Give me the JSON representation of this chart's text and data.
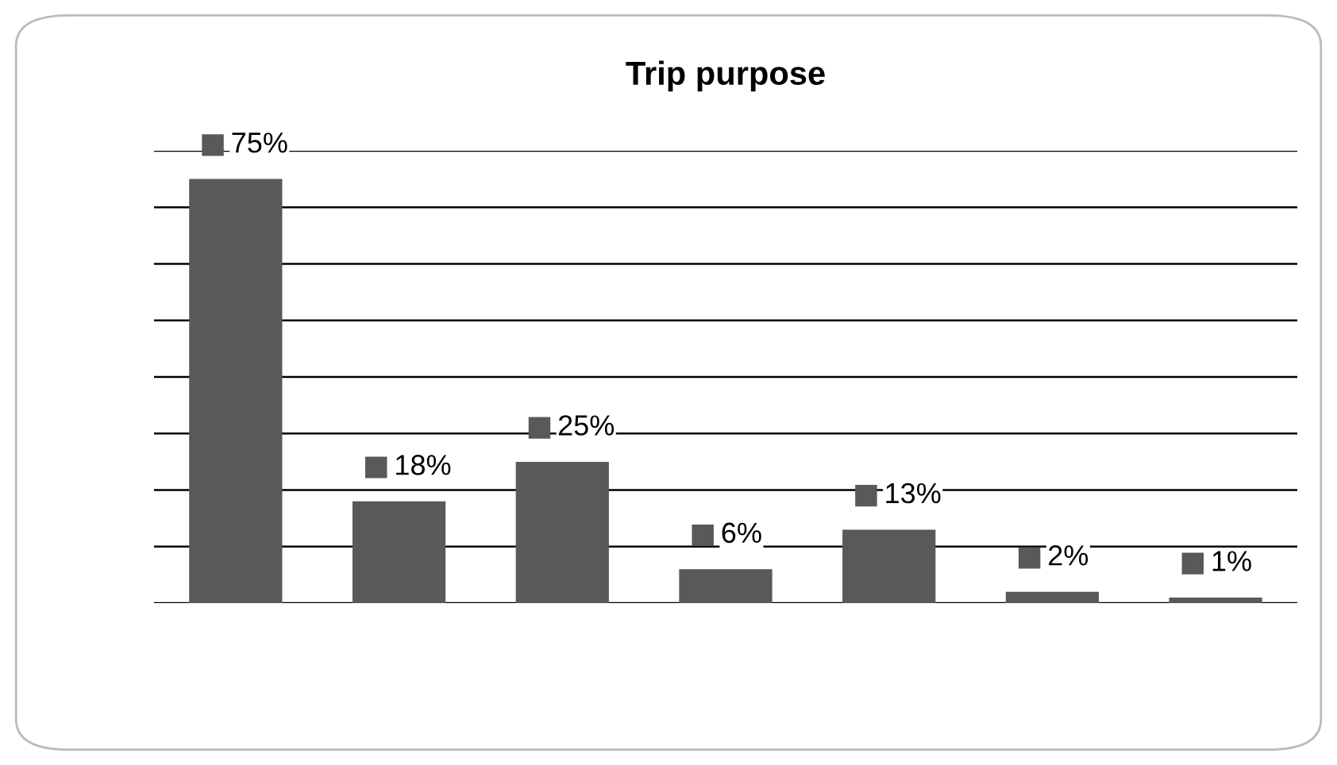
{
  "chart_data": {
    "type": "bar",
    "title": "Trip purpose",
    "categories": [
      null,
      null,
      null,
      null,
      null,
      null,
      null
    ],
    "values": [
      75,
      18,
      25,
      6,
      13,
      2,
      1
    ],
    "value_labels": [
      "75%",
      "18%",
      "25%",
      "6%",
      "13%",
      "2%",
      "1%"
    ],
    "color": "#595959",
    "ylim": [
      0,
      80
    ],
    "yticks": [
      {
        "value": 0,
        "label": null
      },
      {
        "value": 10,
        "label": null
      },
      {
        "value": 20,
        "label": null
      },
      {
        "value": 30,
        "label": null
      },
      {
        "value": 40,
        "label": null
      },
      {
        "value": 50,
        "label": null
      },
      {
        "value": 60,
        "label": null
      },
      {
        "value": 70,
        "label": null
      },
      {
        "value": 80,
        "label": null
      }
    ],
    "grid": "y"
  }
}
